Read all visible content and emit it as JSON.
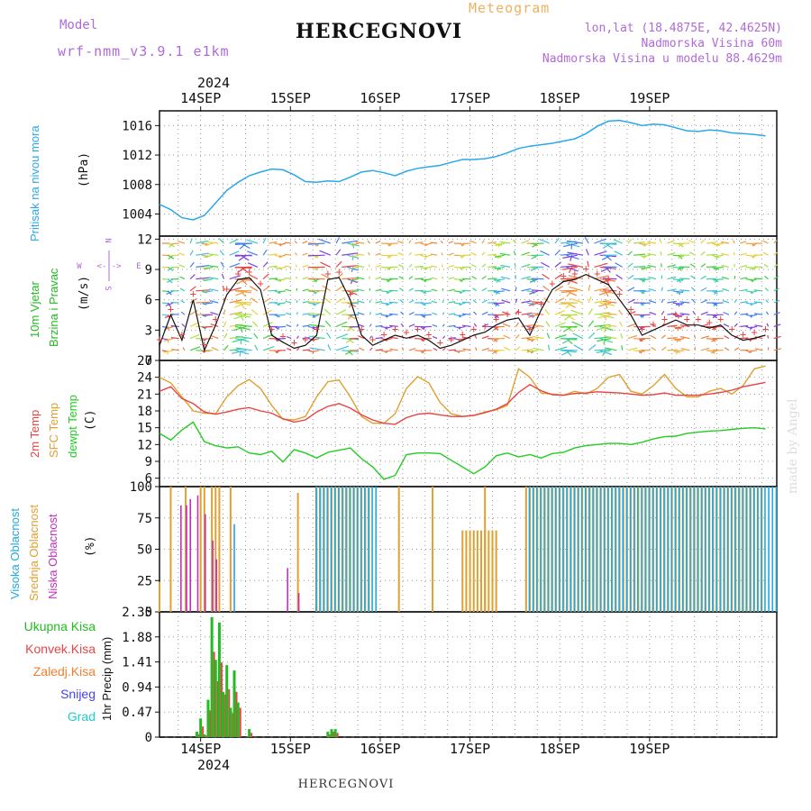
{
  "header": {
    "meteogram_label": "Meteogram",
    "model_label": "Model",
    "model_name": "wrf-nmm_v3.9.1 e1km",
    "station": "HERCEGNOVI",
    "lonlat": "lon,lat (18.4875E, 42.4625N)",
    "altitude": "Nadmorska Visina 60m",
    "model_altitude": "Nadmorska Visina u modelu 88.4629m",
    "signature": "made by Angel"
  },
  "footer": {
    "station": "HERCEGNOVI"
  },
  "colors": {
    "pressure": "#2aa8e8",
    "wind_label": "#22bb22",
    "wind_line": "#111111",
    "wind_plus": "#e84444",
    "temp2m": "#e84444",
    "sfc_temp": "#e0a030",
    "dewpt": "#22cc22",
    "cloud_high": "#22a8e0",
    "cloud_mid": "#e0a030",
    "cloud_low": "#c030c0",
    "precip_total": "#22bb22",
    "precip_conv": "#e84444",
    "precip_frozen": "#f08030",
    "precip_snow": "#4444ee",
    "precip_hail": "#22cccc",
    "compass": "#b06ad8"
  },
  "time_axis": {
    "year": "2024",
    "days": [
      "14SEP",
      "15SEP",
      "16SEP",
      "17SEP",
      "18SEP",
      "19SEP"
    ]
  },
  "chart_data": [
    {
      "type": "line",
      "id": "pressure",
      "ylabel_outer": "Pritisak na nivou mora",
      "ylabel_unit": "(hPa)",
      "ylim": [
        1001,
        1018
      ],
      "yticks": [
        "1004",
        "1008",
        "1012",
        "1016"
      ],
      "x_hours": [
        0,
        3,
        6,
        9,
        12,
        15,
        18,
        21,
        24,
        27,
        30,
        33,
        36,
        39,
        42,
        45,
        48,
        51,
        54,
        57,
        60,
        63,
        66,
        69,
        72,
        75,
        78,
        81,
        84,
        87,
        90,
        93,
        96,
        99,
        102,
        105,
        108,
        111,
        114,
        117,
        120,
        123,
        126,
        129,
        132,
        135,
        138,
        141,
        144,
        147,
        150,
        153,
        156,
        159,
        162
      ],
      "series": [
        {
          "values": [
            1005.3,
            1004.6,
            1003.5,
            1003.2,
            1003.8,
            1005.5,
            1007.2,
            1008.3,
            1009.2,
            1009.7,
            1010.1,
            1010.0,
            1009.3,
            1008.4,
            1008.3,
            1008.5,
            1008.4,
            1009.0,
            1009.7,
            1009.9,
            1009.6,
            1009.2,
            1009.8,
            1010.2,
            1010.4,
            1010.6,
            1011.0,
            1011.4,
            1011.4,
            1011.5,
            1011.8,
            1012.3,
            1012.9,
            1013.2,
            1013.4,
            1013.6,
            1013.9,
            1014.2,
            1014.9,
            1015.9,
            1016.6,
            1016.7,
            1016.4,
            1016.0,
            1016.2,
            1016.1,
            1015.7,
            1015.3,
            1015.2,
            1015.4,
            1015.3,
            1015.0,
            1014.9,
            1014.8,
            1014.6
          ]
        }
      ]
    },
    {
      "type": "line",
      "id": "wind",
      "ylabel_outer1": "10m Vjetar",
      "ylabel_outer2": "Brzina i Pravac",
      "ylabel_unit": "(m/s)",
      "compass": {
        "n": "N",
        "w": "W",
        "e": "E",
        "s": "S"
      },
      "ylim": [
        0,
        12.3
      ],
      "yticks": [
        "0",
        "3",
        "6",
        "9",
        "12"
      ],
      "x_hours": [
        0,
        3,
        6,
        9,
        12,
        15,
        18,
        21,
        24,
        27,
        30,
        33,
        36,
        39,
        42,
        45,
        48,
        51,
        54,
        57,
        60,
        63,
        66,
        69,
        72,
        75,
        78,
        81,
        84,
        87,
        90,
        93,
        96,
        99,
        102,
        105,
        108,
        111,
        114,
        117,
        120,
        123,
        126,
        129,
        132,
        135,
        138,
        141,
        144,
        147,
        150,
        153,
        156,
        159,
        162
      ],
      "series": [
        {
          "name": "speed",
          "values": [
            1.5,
            4.5,
            2.0,
            6.0,
            1.0,
            3.5,
            6.5,
            8.0,
            8.2,
            7.0,
            2.5,
            1.8,
            1.2,
            1.5,
            2.5,
            8.0,
            8.2,
            6.0,
            2.5,
            1.5,
            2.0,
            2.5,
            2.2,
            2.5,
            2.0,
            1.2,
            1.5,
            2.0,
            2.5,
            2.8,
            3.5,
            4.0,
            4.2,
            2.5,
            5.0,
            7.0,
            7.8,
            8.0,
            8.5,
            8.0,
            7.5,
            6.0,
            4.5,
            2.5,
            3.0,
            3.5,
            4.0,
            3.5,
            3.5,
            3.2,
            3.5,
            2.5,
            2.0,
            2.2,
            2.5
          ]
        }
      ]
    },
    {
      "type": "line",
      "id": "temperature",
      "ylabel_outer1": "2m Temp",
      "ylabel_outer2": "SFC Temp",
      "ylabel_outer3": "dewpt Temp",
      "ylabel_unit": "(C)",
      "ylim": [
        4.5,
        27
      ],
      "yticks": [
        "6",
        "9",
        "12",
        "15",
        "18",
        "21",
        "24",
        "27"
      ],
      "x_hours": [
        0,
        3,
        6,
        9,
        12,
        15,
        18,
        21,
        24,
        27,
        30,
        33,
        36,
        39,
        42,
        45,
        48,
        51,
        54,
        57,
        60,
        63,
        66,
        69,
        72,
        75,
        78,
        81,
        84,
        87,
        90,
        93,
        96,
        99,
        102,
        105,
        108,
        111,
        114,
        117,
        120,
        123,
        126,
        129,
        132,
        135,
        138,
        141,
        144,
        147,
        150,
        153,
        156,
        159,
        162
      ],
      "series": [
        {
          "name": "2m Temp",
          "values": [
            21.5,
            22.3,
            20.2,
            19.3,
            17.8,
            17.4,
            17.8,
            18.3,
            18.6,
            18.0,
            17.6,
            16.6,
            16.0,
            16.4,
            17.8,
            18.8,
            19.3,
            18.5,
            17.3,
            16.4,
            15.8,
            15.6,
            16.8,
            17.4,
            17.6,
            17.3,
            17.0,
            17.0,
            17.2,
            17.7,
            18.3,
            19.3,
            21.3,
            22.7,
            21.6,
            20.9,
            20.8,
            21.1,
            21.2,
            21.4,
            21.3,
            21.2,
            21.0,
            20.8,
            20.9,
            21.2,
            20.8,
            20.8,
            20.8,
            21.0,
            21.3,
            21.7,
            22.3,
            22.7,
            23.1
          ]
        },
        {
          "name": "SFC Temp",
          "values": [
            24.0,
            23.0,
            20.5,
            18.0,
            17.6,
            17.5,
            20.5,
            22.5,
            23.6,
            22.0,
            19.0,
            16.5,
            16.4,
            17.0,
            20.5,
            23.2,
            23.5,
            20.5,
            17.0,
            15.8,
            15.8,
            17.5,
            22.0,
            24.1,
            23.0,
            19.5,
            17.5,
            17.0,
            17.2,
            17.8,
            18.2,
            19.0,
            25.5,
            24.0,
            21.2,
            21.0,
            20.8,
            21.5,
            21.0,
            22.0,
            24.0,
            24.5,
            21.5,
            21.0,
            22.5,
            24.5,
            22.0,
            20.5,
            20.5,
            21.5,
            22.0,
            21.0,
            22.5,
            25.5,
            26.0
          ]
        },
        {
          "name": "dewpt Temp",
          "values": [
            14.0,
            12.8,
            14.6,
            16.0,
            12.5,
            11.8,
            11.4,
            11.6,
            10.5,
            10.2,
            10.8,
            8.9,
            11.1,
            10.5,
            9.6,
            10.6,
            11.0,
            11.4,
            9.5,
            8.0,
            5.8,
            6.5,
            10.2,
            10.5,
            10.5,
            10.4,
            9.2,
            8.0,
            6.8,
            8.0,
            10.0,
            10.5,
            9.8,
            10.2,
            9.6,
            10.4,
            10.6,
            11.4,
            11.8,
            12.0,
            12.2,
            12.2,
            12.0,
            12.4,
            13.0,
            13.4,
            13.5,
            14.0,
            14.2,
            14.4,
            14.5,
            14.7,
            14.9,
            15.0,
            14.8
          ]
        }
      ]
    },
    {
      "type": "bar",
      "id": "clouds",
      "ylabel_outer1": "Visoka Oblacnost",
      "ylabel_outer2": "Srednja Oblacnost",
      "ylabel_outer3": "Niska Oblacnost",
      "ylabel_unit": "(%)",
      "ylim": [
        0,
        100
      ],
      "yticks": [
        "0",
        "25",
        "50",
        "75",
        "100"
      ],
      "series": [
        {
          "name": "Visoka Oblacnost",
          "bars": [
            [
              20,
              0,
              70
            ],
            [
              41.5,
              58.5
            ],
            [
              98.5,
              165
            ]
          ]
        },
        {
          "name": "Srednja Oblacnost",
          "bars": [
            [
              0,
              24
            ],
            [
              3,
              1,
              100
            ],
            [
              7,
              1,
              100
            ],
            [
              11,
              2,
              100
            ],
            [
              14,
              3,
              100
            ],
            [
              19,
              1,
              100
            ],
            [
              37,
              1,
              95
            ],
            [
              42,
              15,
              100
            ],
            [
              64,
              1,
              100
            ],
            [
              73,
              1,
              100
            ],
            [
              81,
              10,
              65
            ],
            [
              87,
              1,
              100
            ],
            [
              98,
              64,
              100
            ]
          ]
        },
        {
          "name": "Niska Oblacnost",
          "bars": [
            [
              5.5,
              85
            ],
            [
              7,
              85
            ],
            [
              8,
              90
            ],
            [
              10,
              93
            ],
            [
              12,
              78
            ],
            [
              14,
              57
            ],
            [
              15,
              42
            ],
            [
              34,
              35
            ],
            [
              37,
              15
            ]
          ]
        }
      ]
    },
    {
      "type": "bar",
      "id": "precip",
      "legend": [
        "Ukupna Kisa",
        "Konvek.Kisa",
        "Zaledj.Kisa",
        "Snijeg",
        "Grad"
      ],
      "ylabel_unit": "1hr Precip (mm)",
      "ylim": [
        0,
        2.35
      ],
      "yticks": [
        "0",
        "0.47",
        "0.94",
        "1.41",
        "1.88",
        "2.35"
      ],
      "x_hours": [
        10,
        11,
        12,
        13,
        14,
        15,
        16,
        17,
        18,
        19,
        20,
        21,
        22,
        23,
        24,
        25,
        26,
        27,
        28,
        29,
        30,
        31,
        32,
        33,
        34,
        35,
        36,
        37,
        38,
        39,
        40,
        41,
        42,
        43,
        44,
        45,
        46,
        47,
        48
      ],
      "series": [
        {
          "name": "Ukupna Kisa",
          "values": [
            0.1,
            0.35,
            0.05,
            0.7,
            2.25,
            1.45,
            2.15,
            0.85,
            1.35,
            0.55,
            1.25,
            0.65,
            0.0,
            0.0,
            0.15,
            0.0,
            0.0,
            0.0,
            0.0,
            0.0,
            0.0,
            0.0,
            0.0,
            0.0,
            0.0,
            0.0,
            0.0,
            0.0,
            0.0,
            0.0,
            0.0,
            0.0,
            0.0,
            0.0,
            0.0,
            0.1,
            0.15,
            0.15,
            0.0
          ]
        },
        {
          "name": "Konvek.Kisa",
          "values": [
            0.05,
            0.2,
            0.03,
            0.5,
            1.6,
            1.05,
            1.4,
            0.8,
            0.9,
            0.45,
            0.85,
            0.55,
            0.0,
            0.0,
            0.08,
            0.0,
            0.0,
            0.0,
            0.0,
            0.0,
            0.0,
            0.0,
            0.0,
            0.0,
            0.0,
            0.0,
            0.0,
            0.0,
            0.0,
            0.0,
            0.0,
            0.0,
            0.0,
            0.0,
            0.0,
            0.05,
            0.1,
            0.08,
            0.0
          ]
        }
      ]
    }
  ]
}
